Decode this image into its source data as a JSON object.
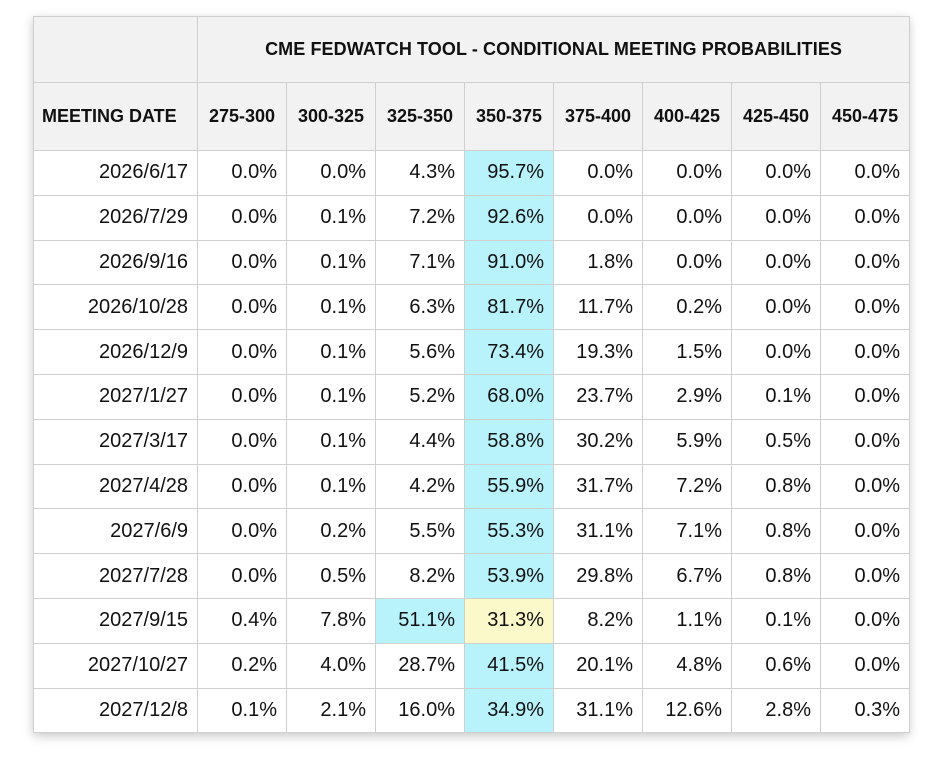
{
  "title": "CME FEDWATCH TOOL - CONDITIONAL MEETING PROBABILITIES",
  "date_header": "MEETING DATE",
  "ranges": [
    "275-300",
    "300-325",
    "325-350",
    "350-375",
    "375-400",
    "400-425",
    "425-450",
    "450-475"
  ],
  "colors": {
    "highlight_blue": "#b8f2fb",
    "highlight_yellow": "#fbf8c9",
    "header_bg": "#f2f2f2"
  },
  "rows": [
    {
      "date": "2026/6/17",
      "values": [
        "0.0%",
        "0.0%",
        "4.3%",
        "95.7%",
        "0.0%",
        "0.0%",
        "0.0%",
        "0.0%"
      ],
      "highlights": {
        "3": "blue"
      }
    },
    {
      "date": "2026/7/29",
      "values": [
        "0.0%",
        "0.1%",
        "7.2%",
        "92.6%",
        "0.0%",
        "0.0%",
        "0.0%",
        "0.0%"
      ],
      "highlights": {
        "3": "blue"
      }
    },
    {
      "date": "2026/9/16",
      "values": [
        "0.0%",
        "0.1%",
        "7.1%",
        "91.0%",
        "1.8%",
        "0.0%",
        "0.0%",
        "0.0%"
      ],
      "highlights": {
        "3": "blue"
      }
    },
    {
      "date": "2026/10/28",
      "values": [
        "0.0%",
        "0.1%",
        "6.3%",
        "81.7%",
        "11.7%",
        "0.2%",
        "0.0%",
        "0.0%"
      ],
      "highlights": {
        "3": "blue"
      }
    },
    {
      "date": "2026/12/9",
      "values": [
        "0.0%",
        "0.1%",
        "5.6%",
        "73.4%",
        "19.3%",
        "1.5%",
        "0.0%",
        "0.0%"
      ],
      "highlights": {
        "3": "blue"
      }
    },
    {
      "date": "2027/1/27",
      "values": [
        "0.0%",
        "0.1%",
        "5.2%",
        "68.0%",
        "23.7%",
        "2.9%",
        "0.1%",
        "0.0%"
      ],
      "highlights": {
        "3": "blue"
      }
    },
    {
      "date": "2027/3/17",
      "values": [
        "0.0%",
        "0.1%",
        "4.4%",
        "58.8%",
        "30.2%",
        "5.9%",
        "0.5%",
        "0.0%"
      ],
      "highlights": {
        "3": "blue"
      }
    },
    {
      "date": "2027/4/28",
      "values": [
        "0.0%",
        "0.1%",
        "4.2%",
        "55.9%",
        "31.7%",
        "7.2%",
        "0.8%",
        "0.0%"
      ],
      "highlights": {
        "3": "blue"
      }
    },
    {
      "date": "2027/6/9",
      "values": [
        "0.0%",
        "0.2%",
        "5.5%",
        "55.3%",
        "31.1%",
        "7.1%",
        "0.8%",
        "0.0%"
      ],
      "highlights": {
        "3": "blue"
      }
    },
    {
      "date": "2027/7/28",
      "values": [
        "0.0%",
        "0.5%",
        "8.2%",
        "53.9%",
        "29.8%",
        "6.7%",
        "0.8%",
        "0.0%"
      ],
      "highlights": {
        "3": "blue"
      }
    },
    {
      "date": "2027/9/15",
      "values": [
        "0.4%",
        "7.8%",
        "51.1%",
        "31.3%",
        "8.2%",
        "1.1%",
        "0.1%",
        "0.0%"
      ],
      "highlights": {
        "2": "blue",
        "3": "yellow"
      }
    },
    {
      "date": "2027/10/27",
      "values": [
        "0.2%",
        "4.0%",
        "28.7%",
        "41.5%",
        "20.1%",
        "4.8%",
        "0.6%",
        "0.0%"
      ],
      "highlights": {
        "3": "blue"
      }
    },
    {
      "date": "2027/12/8",
      "values": [
        "0.1%",
        "2.1%",
        "16.0%",
        "34.9%",
        "31.1%",
        "12.6%",
        "2.8%",
        "0.3%"
      ],
      "highlights": {
        "3": "blue"
      }
    }
  ]
}
